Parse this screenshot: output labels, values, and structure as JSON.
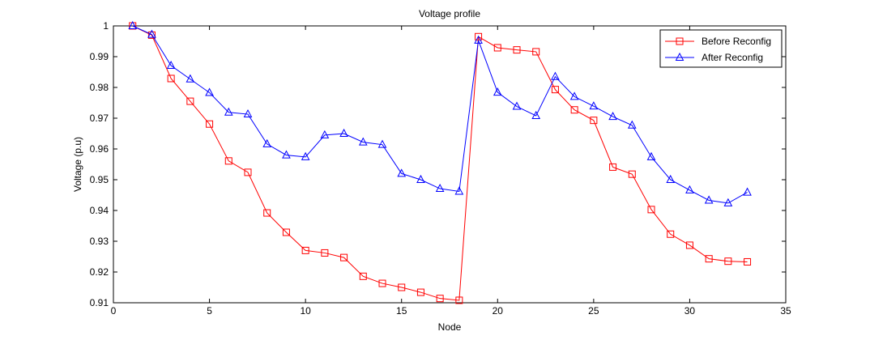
{
  "chart_data": {
    "type": "line",
    "title": "Voltage profile",
    "xlabel": "Node",
    "ylabel": "Voltage (p.u)",
    "xlim": [
      0,
      35
    ],
    "ylim": [
      0.91,
      1.0
    ],
    "xticks": [
      0,
      5,
      10,
      15,
      20,
      25,
      30,
      35
    ],
    "xtick_labels": [
      "0",
      "5",
      "10",
      "15",
      "20",
      "25",
      "30",
      "35"
    ],
    "yticks": [
      0.91,
      0.92,
      0.93,
      0.94,
      0.95,
      0.96,
      0.97,
      0.98,
      0.99,
      1.0
    ],
    "ytick_labels": [
      "0.91",
      "0.92",
      "0.93",
      "0.94",
      "0.95",
      "0.96",
      "0.97",
      "0.98",
      "0.99",
      "1"
    ],
    "grid": false,
    "legend_position": "top-right",
    "x": [
      1,
      2,
      3,
      4,
      5,
      6,
      7,
      8,
      9,
      10,
      11,
      12,
      13,
      14,
      15,
      16,
      17,
      18,
      19,
      20,
      21,
      22,
      23,
      24,
      25,
      26,
      27,
      28,
      29,
      30,
      31,
      32,
      33
    ],
    "series": [
      {
        "name": "Before Reconfig",
        "color": "#ff0000",
        "marker": "square",
        "values": [
          1.0,
          0.997,
          0.9829,
          0.9755,
          0.9681,
          0.9561,
          0.9524,
          0.9392,
          0.9329,
          0.927,
          0.9262,
          0.9247,
          0.9186,
          0.9163,
          0.915,
          0.9134,
          0.9114,
          0.9108,
          0.9965,
          0.9929,
          0.9922,
          0.9916,
          0.9793,
          0.9727,
          0.9693,
          0.9541,
          0.9518,
          0.9403,
          0.9323,
          0.9287,
          0.9243,
          0.9235,
          0.9233
        ]
      },
      {
        "name": "After Reconfig",
        "color": "#0000ff",
        "marker": "triangle",
        "values": [
          1.0,
          0.9972,
          0.9871,
          0.9827,
          0.9783,
          0.9719,
          0.9713,
          0.9616,
          0.958,
          0.9574,
          0.9645,
          0.965,
          0.9622,
          0.9614,
          0.952,
          0.95,
          0.9471,
          0.9462,
          0.9953,
          0.9784,
          0.9738,
          0.9708,
          0.9835,
          0.977,
          0.9739,
          0.9705,
          0.9677,
          0.9574,
          0.95,
          0.9466,
          0.9433,
          0.9424,
          0.9459
        ]
      }
    ]
  }
}
